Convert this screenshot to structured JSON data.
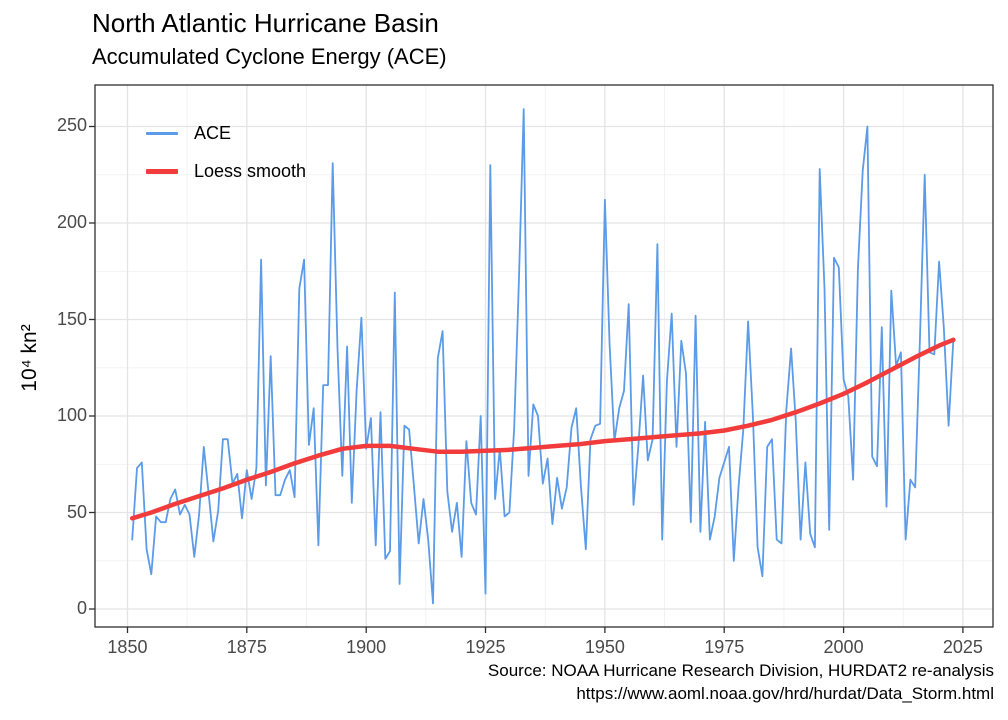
{
  "title": "North Atlantic Hurricane Basin",
  "subtitle": "Accumulated Cyclone Energy (ACE)",
  "y_axis_title": "10⁴ kn²",
  "caption": {
    "line1": "Source: NOAA Hurricane Research Division, HURDAT2 re-analysis",
    "line2": "https://www.aoml.noaa.gov/hrd/hurdat/Data_Storm.html"
  },
  "legend": {
    "items": [
      {
        "label": "ACE",
        "color": "#5B9BE8"
      },
      {
        "label": "Loess smooth",
        "color": "#F23B3B"
      }
    ]
  },
  "colors": {
    "ace_line": "#5B9BE8",
    "loess_line": "#F23B3B",
    "grid_major": "#E4E4E4",
    "grid_minor": "#F1F1F1",
    "panel_border": "#2F2F2F",
    "tick_mark": "#2F2F2F",
    "axis_text": "#4a4a4a",
    "background": "#FFFFFF"
  },
  "chart_data": {
    "type": "line",
    "title": "North Atlantic Hurricane Basin",
    "subtitle": "Accumulated Cyclone Energy (ACE)",
    "xlabel": "",
    "ylabel": "10⁴ kn²",
    "grid": true,
    "legend_position": "top-left-inside",
    "x_ticks": [
      1850,
      1875,
      1900,
      1925,
      1950,
      1975,
      2000,
      2025
    ],
    "y_ticks": [
      0,
      50,
      100,
      150,
      200,
      250
    ],
    "x_minor_ticks": [
      1862.5,
      1887.5,
      1912.5,
      1937.5,
      1962.5,
      1987.5,
      2012.5
    ],
    "y_minor_ticks": [
      25,
      75,
      125,
      175,
      225
    ],
    "xlim": [
      1843.2,
      2031.3
    ],
    "ylim": [
      -9.3,
      271.5
    ],
    "series": [
      {
        "name": "ACE",
        "color": "#5B9BE8",
        "stroke_width": 1.8,
        "start_year": 1851,
        "end_year": 2023,
        "values": [
          36,
          73,
          76,
          31,
          18,
          48,
          45,
          45,
          57,
          62,
          49,
          54,
          49,
          27,
          49,
          84,
          60,
          35,
          51,
          88,
          88,
          65,
          70,
          47,
          72,
          57,
          73,
          181,
          64,
          131,
          59,
          59,
          67,
          72,
          58,
          166,
          181,
          85,
          104,
          33,
          116,
          116,
          231,
          135,
          69,
          136,
          55,
          113,
          151,
          83,
          99,
          33,
          102,
          26,
          30,
          164,
          13,
          95,
          93,
          64,
          34,
          57,
          36,
          3,
          130,
          144,
          61,
          40,
          55,
          27,
          87,
          55,
          49,
          100,
          8,
          230,
          57,
          83,
          48,
          50,
          94,
          170,
          259,
          69,
          106,
          100,
          65,
          78,
          44,
          68,
          52,
          63,
          94,
          104,
          63,
          31,
          88,
          95,
          96,
          212,
          137,
          87,
          104,
          113,
          158,
          54,
          84,
          121,
          77,
          88,
          189,
          36,
          118,
          153,
          84,
          139,
          122,
          45,
          152,
          40,
          97,
          36,
          48,
          68,
          76,
          84,
          25,
          63,
          93,
          149,
          100,
          32,
          17,
          84,
          88,
          36,
          34,
          103,
          135,
          97,
          36,
          76,
          39,
          32,
          228,
          166,
          41,
          182,
          177,
          119,
          110,
          67,
          176,
          227,
          250,
          79,
          74,
          146,
          53,
          165,
          126,
          133,
          36,
          67,
          63,
          141,
          225,
          133,
          132,
          180,
          146,
          95,
          140
        ]
      },
      {
        "name": "Loess smooth",
        "color": "#F23B3B",
        "stroke_width": 4.5,
        "points": [
          [
            1851,
            47
          ],
          [
            1855,
            50
          ],
          [
            1860,
            54.5
          ],
          [
            1865,
            58.5
          ],
          [
            1870,
            62.5
          ],
          [
            1875,
            67
          ],
          [
            1880,
            71
          ],
          [
            1885,
            75.5
          ],
          [
            1890,
            79.5
          ],
          [
            1895,
            83
          ],
          [
            1900,
            84.5
          ],
          [
            1905,
            84.5
          ],
          [
            1910,
            83
          ],
          [
            1915,
            81.5
          ],
          [
            1920,
            81.5
          ],
          [
            1925,
            82
          ],
          [
            1930,
            82.5
          ],
          [
            1935,
            83.5
          ],
          [
            1940,
            84.5
          ],
          [
            1945,
            85.5
          ],
          [
            1950,
            87
          ],
          [
            1955,
            88
          ],
          [
            1960,
            89
          ],
          [
            1965,
            90
          ],
          [
            1970,
            91
          ],
          [
            1975,
            92.5
          ],
          [
            1980,
            95
          ],
          [
            1985,
            98
          ],
          [
            1990,
            102
          ],
          [
            1995,
            106.5
          ],
          [
            2000,
            111.5
          ],
          [
            2005,
            117.5
          ],
          [
            2010,
            124
          ],
          [
            2015,
            130.5
          ],
          [
            2020,
            136.5
          ],
          [
            2023,
            139.5
          ]
        ]
      }
    ]
  }
}
